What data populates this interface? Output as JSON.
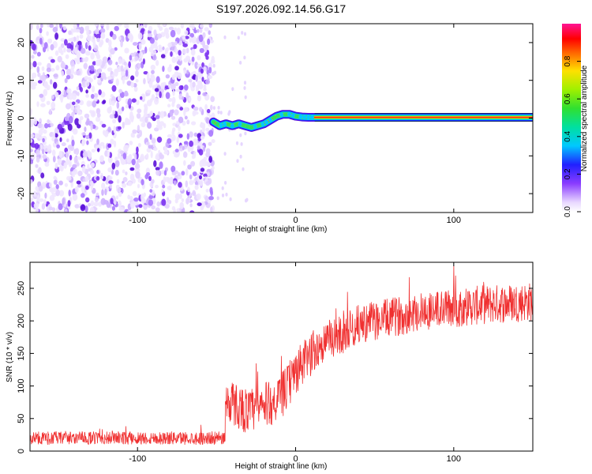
{
  "title": "S197.2026.092.14.56.G17",
  "colors": {
    "snr_line": "#f03030",
    "scatter": "#6a1be0",
    "background": "#ffffff"
  },
  "chart_data": [
    {
      "type": "heatmap",
      "name": "spectrogram",
      "xlabel": "Height of straight line (km)",
      "ylabel": "Frequency (Hz)",
      "xlim": [
        -168,
        150
      ],
      "ylim": [
        -25,
        25
      ],
      "x_ticks": [
        -100,
        0,
        100
      ],
      "x_tick_labels": [
        "-100",
        "0",
        "100"
      ],
      "y_ticks": [
        -20,
        -10,
        0,
        10,
        20
      ],
      "y_tick_labels": [
        "-20",
        "-10",
        "0",
        "10",
        "20"
      ],
      "noise_region_km": [
        -168,
        -52
      ],
      "signal_trace": {
        "x": [
          -52,
          -48,
          -44,
          -40,
          -36,
          -32,
          -28,
          -24,
          -20,
          -16,
          -12,
          -8,
          -4,
          0,
          4,
          8,
          12,
          20,
          40,
          80,
          120,
          150
        ],
        "y": [
          -1.0,
          -2.0,
          -1.5,
          -2.0,
          -1.5,
          -2.0,
          -2.5,
          -2.0,
          -1.5,
          -0.5,
          0.5,
          1.0,
          1.0,
          0.5,
          0.3,
          0.2,
          0.2,
          0.2,
          0.2,
          0.2,
          0.2,
          0.2
        ]
      },
      "colorbar": {
        "label": "Normalized spectral amplitude",
        "range": [
          0,
          1
        ],
        "ticks": [
          0.0,
          0.2,
          0.4,
          0.6,
          0.8
        ],
        "tick_labels": [
          "0.0",
          "0.2",
          "0.4",
          "0.6",
          "0.8"
        ]
      }
    },
    {
      "type": "line",
      "name": "snr",
      "xlabel": "Height of straight line (km)",
      "ylabel": "SNR (10 * v/v)",
      "xlim": [
        -168,
        150
      ],
      "ylim": [
        0,
        290
      ],
      "x_ticks": [
        -100,
        0,
        100
      ],
      "x_tick_labels": [
        "-100",
        "0",
        "100"
      ],
      "y_ticks": [
        0,
        50,
        100,
        150,
        200,
        250
      ],
      "y_tick_labels": [
        "0",
        "50",
        "100",
        "150",
        "200",
        "250"
      ],
      "trend": {
        "x": [
          -168,
          -100,
          -45,
          -44,
          -30,
          -20,
          -10,
          0,
          10,
          20,
          30,
          40,
          60,
          80,
          100,
          120,
          150
        ],
        "y": [
          20,
          20,
          20,
          80,
          60,
          70,
          80,
          120,
          150,
          170,
          180,
          195,
          205,
          215,
          220,
          225,
          230
        ]
      }
    }
  ]
}
